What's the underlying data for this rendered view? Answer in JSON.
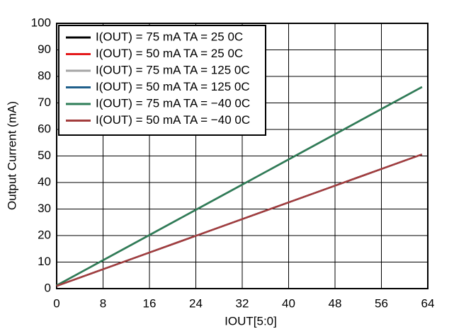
{
  "chart_data": {
    "type": "line",
    "xlabel": "IOUT[5:0]",
    "ylabel": "Output Current (mA)",
    "x": [
      0,
      8,
      16,
      24,
      32,
      40,
      48,
      56,
      63
    ],
    "series": [
      {
        "name": "I(OUT) = 75 mA TA = 25 0C",
        "color": "#000000",
        "values": [
          1.2,
          10.7,
          20.2,
          29.7,
          39.2,
          48.7,
          58.2,
          67.7,
          76
        ]
      },
      {
        "name": "I(OUT) = 50 mA TA = 25 0C",
        "color": "#e41a1c",
        "values": [
          1,
          7.3,
          13.6,
          19.9,
          26.2,
          32.5,
          38.8,
          45.1,
          50.6
        ]
      },
      {
        "name": "I(OUT) = 75 mA TA = 125 0C",
        "color": "#a6a6a6",
        "values": [
          1.2,
          10.7,
          20.2,
          29.7,
          39.2,
          48.7,
          58.2,
          67.7,
          76
        ]
      },
      {
        "name": "I(OUT) = 50 mA TA = 125 0C",
        "color": "#1f5f8b",
        "values": [
          1,
          7.3,
          13.6,
          19.9,
          26.2,
          32.5,
          38.8,
          45.1,
          50.6
        ]
      },
      {
        "name": "I(OUT) = 75 mA TA = −40 0C",
        "color": "#2e7d57",
        "values": [
          1.2,
          10.7,
          20.2,
          29.7,
          39.2,
          48.7,
          58.2,
          67.7,
          76
        ]
      },
      {
        "name": "I(OUT) = 50 mA TA = −40 0C",
        "color": "#a33d3d",
        "values": [
          1,
          7.3,
          13.6,
          19.9,
          26.2,
          32.5,
          38.8,
          45.1,
          50.6
        ]
      }
    ],
    "xlim": [
      0,
      64
    ],
    "xticks": [
      0,
      8,
      16,
      24,
      32,
      40,
      48,
      56,
      64
    ],
    "ylim": [
      0,
      100
    ],
    "yticks": [
      0,
      10,
      20,
      30,
      40,
      50,
      60,
      70,
      80,
      90,
      100
    ],
    "grid": true,
    "legend": "upper-left"
  }
}
